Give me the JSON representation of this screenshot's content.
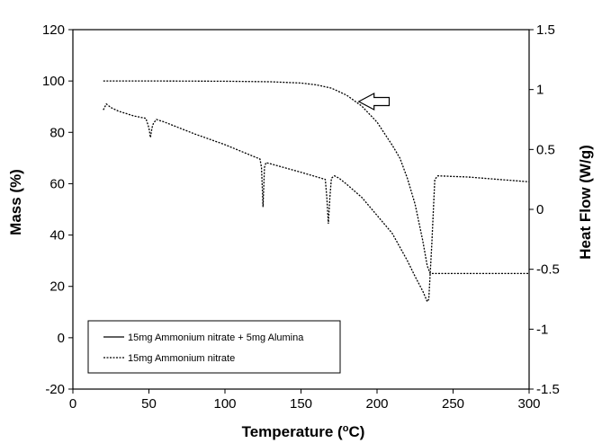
{
  "chart_data": {
    "type": "line",
    "title": "",
    "xlabel": "Temperature (oC)",
    "xlabel_main": "Temperature (",
    "xlabel_sup": "o",
    "xlabel_end": "C)",
    "ylabel": "Mass (%)",
    "y2label": "Heat Flow (W/g)",
    "xlim": [
      0,
      300
    ],
    "ylim": [
      -20,
      120
    ],
    "y2lim": [
      -1.5,
      1.5
    ],
    "x_ticks": [
      "0",
      "50",
      "100",
      "150",
      "200",
      "250",
      "300"
    ],
    "y_ticks": [
      "-20",
      "0",
      "20",
      "40",
      "60",
      "80",
      "100",
      "120"
    ],
    "y2_ticks": [
      "-1.5",
      "-1",
      "-0.5",
      "0",
      "0.5",
      "1",
      "1.5"
    ],
    "grid": false,
    "legend_position": "bottom-left",
    "legend": [
      "15mg Ammonium nitrate + 5mg Alumina",
      "15mg Ammonium nitrate"
    ],
    "series": [
      {
        "name": "15mg Ammonium nitrate",
        "axis": "left",
        "style": "dashed",
        "x": [
          20,
          50,
          100,
          130,
          150,
          160,
          170,
          180,
          190,
          200,
          210,
          215,
          220,
          225,
          230,
          233,
          235,
          237,
          250,
          300
        ],
        "y": [
          100,
          100,
          99.9,
          99.7,
          99.2,
          98.5,
          97.2,
          94.5,
          90.2,
          84,
          75,
          70,
          62,
          52,
          38,
          28,
          25,
          25,
          25,
          25
        ]
      },
      {
        "name": "15mg Ammonium nitrate",
        "axis": "right",
        "style": "dashed",
        "x": [
          20,
          22,
          25,
          30,
          40,
          48,
          50,
          51,
          52,
          53,
          55,
          60,
          80,
          100,
          123,
          124,
          125,
          126,
          127,
          130,
          150,
          166,
          167,
          168,
          169,
          170,
          172,
          175,
          180,
          190,
          200,
          210,
          220,
          225,
          230,
          233,
          234,
          236,
          238,
          240,
          260,
          280,
          300
        ],
        "y": [
          0.83,
          0.88,
          0.85,
          0.82,
          0.78,
          0.76,
          0.68,
          0.6,
          0.68,
          0.72,
          0.75,
          0.73,
          0.63,
          0.54,
          0.42,
          0.35,
          0.02,
          0.35,
          0.39,
          0.38,
          0.31,
          0.25,
          0.1,
          -0.12,
          0.1,
          0.26,
          0.28,
          0.26,
          0.21,
          0.1,
          -0.05,
          -0.2,
          -0.43,
          -0.56,
          -0.68,
          -0.77,
          -0.75,
          -0.3,
          0.25,
          0.28,
          0.27,
          0.25,
          0.23
        ]
      }
    ],
    "annotations": [
      {
        "type": "arrow",
        "direction": "left",
        "x": [
          188,
          208
        ],
        "y": 92,
        "points_to": "Mass (%)"
      },
      {
        "type": "arrow",
        "direction": "right",
        "x": [
          180,
          210
        ],
        "y": 3,
        "axis": "right",
        "points_to": "Heat Flow (W/g)"
      }
    ]
  }
}
